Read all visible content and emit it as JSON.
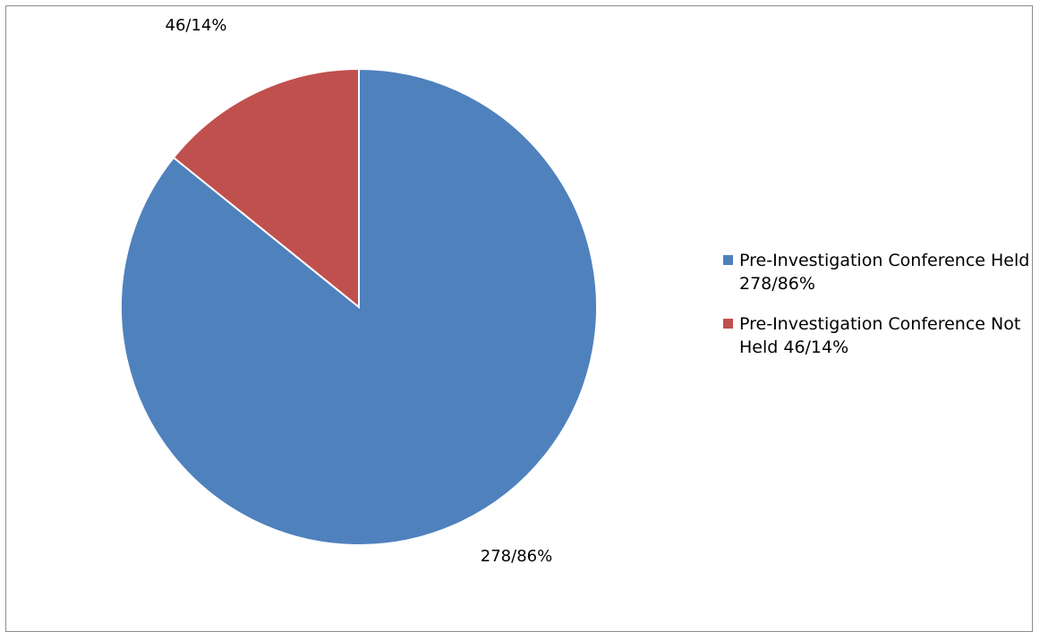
{
  "chart_data": {
    "type": "pie",
    "series": [
      {
        "name": "Pre-Investigation Conference Held 278/86%",
        "value": 278,
        "percent": 86,
        "data_label": "278/86%",
        "color": "#4f81bd"
      },
      {
        "name": "Pre-Investigation Conference Not Held 46/14%",
        "value": 46,
        "percent": 14,
        "data_label": "46/14%",
        "color": "#c0504d"
      }
    ],
    "start_angle": "12 o'clock",
    "direction": "clockwise",
    "legend_position": "right",
    "title": ""
  }
}
